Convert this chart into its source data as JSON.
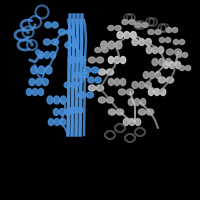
{
  "background_color": "#000000",
  "fig_width": 2.0,
  "fig_height": 2.0,
  "dpi": 100,
  "blue_color": "#4a90d9",
  "gray_color": "#a0a0a0",
  "dark_gray": "#707070",
  "light_gray": "#c0c0c0"
}
